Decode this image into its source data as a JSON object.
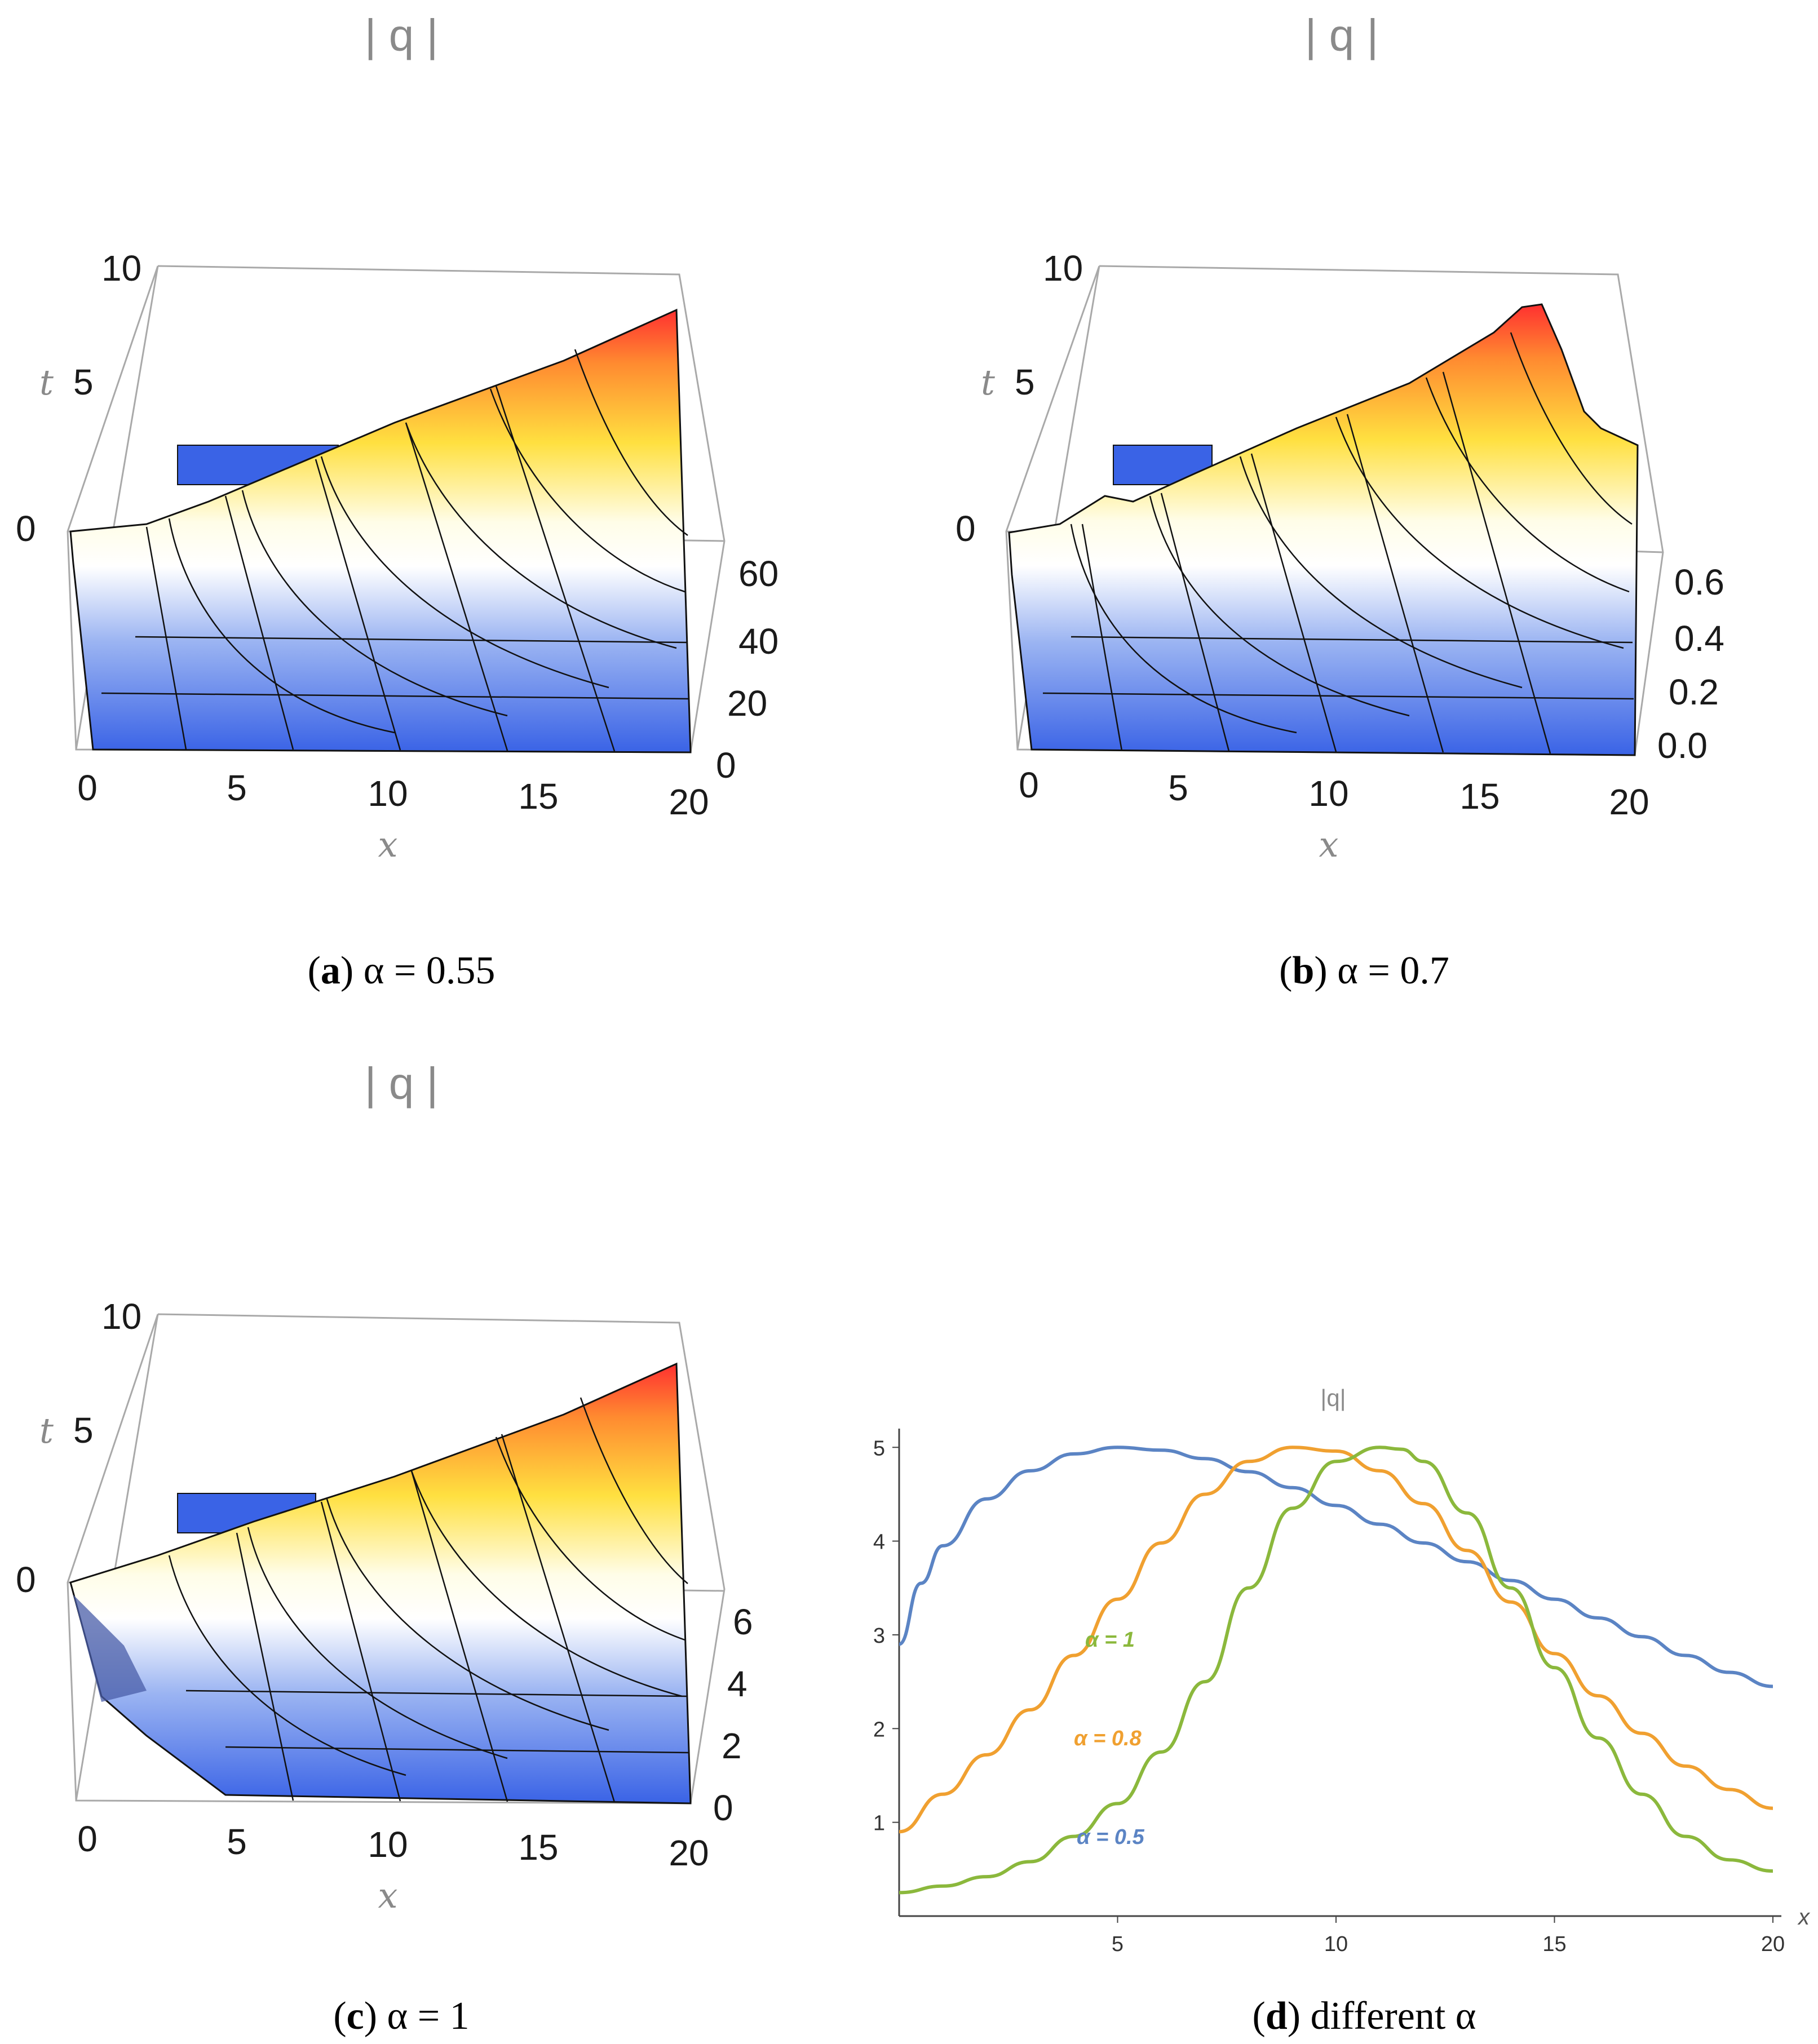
{
  "colors": {
    "surface_low": "#3a63e6",
    "surface_mid": "#ffffff",
    "surface_high": "#ff3030",
    "series_a05": "#5b84c4",
    "series_a08": "#f0a030",
    "series_a1": "#8bb83c"
  },
  "panels": [
    {
      "title": "| q |",
      "t_ticks": [
        "10",
        "5",
        "0"
      ],
      "t_label": "t",
      "x_ticks": [
        "0",
        "5",
        "10",
        "15",
        "20"
      ],
      "x_label": "x",
      "z_ticks": [
        "60",
        "40",
        "20",
        "0"
      ],
      "caption_letter": "a",
      "caption_expr": "α = 0.55"
    },
    {
      "title": "| q |",
      "t_ticks": [
        "10",
        "5",
        "0"
      ],
      "t_label": "t",
      "x_ticks": [
        "0",
        "5",
        "10",
        "15",
        "20"
      ],
      "x_label": "x",
      "z_ticks": [
        "0.6",
        "0.4",
        "0.2",
        "0.0"
      ],
      "caption_letter": "b",
      "caption_expr": "α = 0.7"
    },
    {
      "title": "| q |",
      "t_ticks": [
        "10",
        "5",
        "0"
      ],
      "t_label": "t",
      "x_ticks": [
        "0",
        "5",
        "10",
        "15",
        "20"
      ],
      "x_label": "x",
      "z_ticks": [
        "6",
        "4",
        "2",
        "0"
      ],
      "caption_letter": "c",
      "caption_expr": "α = 1"
    }
  ],
  "chart_data": {
    "type": "line",
    "title": "|q|",
    "xlabel": "x",
    "ylabel": "",
    "xlim": [
      0,
      20
    ],
    "ylim": [
      0,
      5.2
    ],
    "x_ticks": [
      5,
      10,
      15,
      20
    ],
    "y_ticks": [
      1,
      2,
      3,
      4,
      5
    ],
    "caption_letter": "d",
    "caption_text": "different α",
    "series": [
      {
        "name": "α = 0.5",
        "x": [
          0,
          0.5,
          1,
          2,
          3,
          4,
          5,
          6,
          7,
          8,
          9,
          10,
          11,
          12,
          13,
          14,
          15,
          16,
          17,
          18,
          19,
          20
        ],
        "values": [
          2.9,
          3.55,
          3.95,
          4.45,
          4.75,
          4.93,
          5.0,
          4.97,
          4.88,
          4.74,
          4.57,
          4.38,
          4.18,
          3.98,
          3.78,
          3.58,
          3.38,
          3.18,
          2.98,
          2.78,
          2.6,
          2.45
        ]
      },
      {
        "name": "α = 0.8",
        "x": [
          0,
          1,
          2,
          3,
          4,
          5,
          6,
          7,
          8,
          9,
          10,
          11,
          12,
          13,
          14,
          15,
          16,
          17,
          18,
          19,
          20
        ],
        "values": [
          0.9,
          1.3,
          1.72,
          2.2,
          2.78,
          3.38,
          3.98,
          4.5,
          4.85,
          5.0,
          4.96,
          4.75,
          4.4,
          3.9,
          3.35,
          2.8,
          2.35,
          1.95,
          1.6,
          1.35,
          1.15
        ]
      },
      {
        "name": "α = 1",
        "x": [
          0,
          1,
          2,
          3,
          4,
          5,
          6,
          7,
          8,
          9,
          10,
          11,
          11.5,
          12,
          13,
          14,
          15,
          16,
          17,
          18,
          19,
          20
        ],
        "values": [
          0.25,
          0.32,
          0.42,
          0.58,
          0.85,
          1.2,
          1.75,
          2.5,
          3.5,
          4.35,
          4.85,
          5.0,
          4.98,
          4.85,
          4.3,
          3.5,
          2.65,
          1.9,
          1.3,
          0.85,
          0.6,
          0.48
        ]
      }
    ],
    "series_labels": [
      "α = 1",
      "α = 0.8",
      "α = 0.5"
    ]
  }
}
